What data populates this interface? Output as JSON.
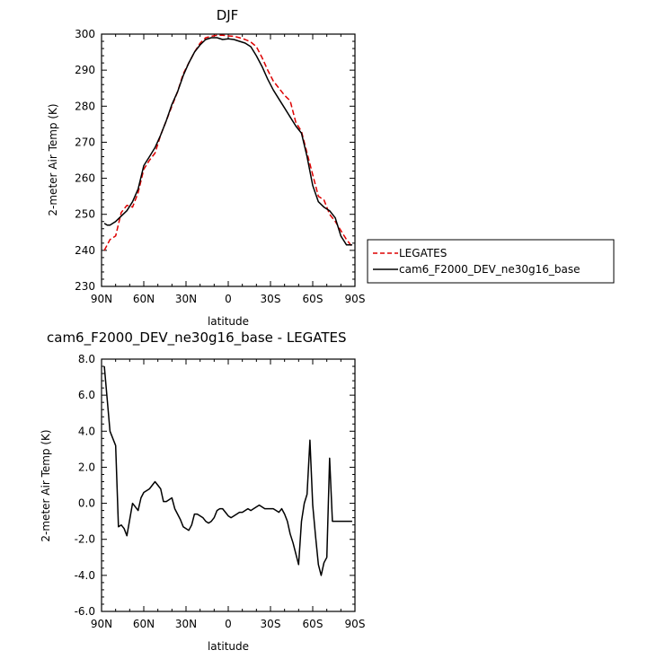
{
  "chart_data": [
    {
      "type": "line",
      "title": "DJF",
      "xlabel": "latitude",
      "ylabel": "2-meter Air Temp (K)",
      "xlim": [
        90,
        -90
      ],
      "ylim": [
        230,
        300
      ],
      "x_ticks": [
        90,
        60,
        30,
        0,
        -30,
        -60,
        -90
      ],
      "x_tick_labels": [
        "90N",
        "60N",
        "30N",
        "0",
        "30S",
        "60S",
        "90S"
      ],
      "y_ticks": [
        230,
        240,
        250,
        260,
        270,
        280,
        290,
        300
      ],
      "y_tick_labels": [
        "230",
        "240",
        "250",
        "260",
        "270",
        "280",
        "290",
        "300"
      ],
      "legend_position": "right",
      "series": [
        {
          "name": "LEGATES",
          "color": "#dd0000",
          "dash": "dashed",
          "x": [
            88,
            84,
            80,
            76,
            72,
            68,
            64,
            60,
            56,
            52,
            48,
            44,
            40,
            36,
            32,
            28,
            24,
            20,
            16,
            12,
            8,
            4,
            0,
            -4,
            -8,
            -12,
            -16,
            -20,
            -24,
            -28,
            -32,
            -36,
            -40,
            -44,
            -48,
            -52,
            -56,
            -60,
            -64,
            -68,
            -72,
            -76,
            -80,
            -84,
            -88
          ],
          "y": [
            240.0,
            243.0,
            244.0,
            250.5,
            252.5,
            252.0,
            256.0,
            262.5,
            265.0,
            267.0,
            272.0,
            276.0,
            280.0,
            284.0,
            289.0,
            292.0,
            295.0,
            297.5,
            299.0,
            299.4,
            299.7,
            299.7,
            299.5,
            299.4,
            299.0,
            298.5,
            297.8,
            296.5,
            293.5,
            290.0,
            287.0,
            285.0,
            283.0,
            281.5,
            275.5,
            273.0,
            267.0,
            261.0,
            255.0,
            254.0,
            250.0,
            248.0,
            245.5,
            243.0,
            241.0
          ]
        },
        {
          "name": "cam6_F2000_DEV_ne30g16_base",
          "color": "#000000",
          "dash": "solid",
          "x": [
            88,
            86,
            84,
            82,
            80,
            76,
            72,
            68,
            64,
            60,
            56,
            52,
            48,
            44,
            40,
            36,
            32,
            28,
            24,
            20,
            16,
            12,
            8,
            4,
            0,
            -4,
            -8,
            -12,
            -16,
            -20,
            -24,
            -28,
            -32,
            -36,
            -40,
            -44,
            -48,
            -52,
            -56,
            -60,
            -64,
            -68,
            -72,
            -76,
            -80,
            -84,
            -88
          ],
          "y": [
            247.5,
            247.0,
            247.0,
            247.5,
            248.0,
            249.5,
            251.0,
            253.5,
            257.0,
            263.5,
            266.0,
            268.5,
            272.0,
            276.0,
            280.5,
            284.0,
            288.5,
            292.0,
            295.0,
            297.0,
            298.5,
            299.0,
            299.0,
            298.5,
            298.7,
            298.5,
            298.0,
            297.5,
            296.5,
            294.0,
            291.0,
            287.5,
            284.5,
            282.0,
            279.5,
            277.0,
            274.5,
            272.5,
            266.0,
            258.0,
            253.5,
            252.0,
            251.0,
            249.0,
            244.0,
            241.5,
            241.5
          ]
        }
      ]
    },
    {
      "type": "line",
      "title": "cam6_F2000_DEV_ne30g16_base - LEGATES",
      "xlabel": "latitude",
      "ylabel": "2-meter Air Temp (K)",
      "xlim": [
        90,
        -90
      ],
      "ylim": [
        -6,
        8
      ],
      "x_ticks": [
        90,
        60,
        30,
        0,
        -30,
        -60,
        -90
      ],
      "x_tick_labels": [
        "90N",
        "60N",
        "30N",
        "0",
        "30S",
        "60S",
        "90S"
      ],
      "y_ticks": [
        -6,
        -4,
        -2,
        0,
        2,
        4,
        6,
        8
      ],
      "y_tick_labels": [
        "-6.0",
        "-4.0",
        "-2.0",
        "0.0",
        "2.0",
        "4.0",
        "6.0",
        "8.0"
      ],
      "series": [
        {
          "color": "#000000",
          "dash": "solid",
          "x": [
            88,
            84,
            80,
            78,
            76,
            74,
            72,
            68,
            64,
            62,
            60,
            56,
            54,
            52,
            50,
            48,
            46,
            44,
            40,
            38,
            36,
            34,
            32,
            30,
            28,
            26,
            24,
            22,
            20,
            18,
            16,
            14,
            12,
            10,
            8,
            6,
            4,
            2,
            0,
            -2,
            -4,
            -6,
            -8,
            -10,
            -12,
            -14,
            -16,
            -18,
            -20,
            -22,
            -24,
            -26,
            -28,
            -30,
            -32,
            -34,
            -36,
            -38,
            -40,
            -42,
            -44,
            -46,
            -48,
            -50,
            -52,
            -54,
            -56,
            -58,
            -60,
            -62,
            -64,
            -66,
            -68,
            -70,
            -72,
            -74,
            -76,
            -78,
            -80,
            -82,
            -84,
            -86,
            -88
          ],
          "y": [
            7.6,
            4.0,
            3.2,
            -1.3,
            -1.2,
            -1.4,
            -1.8,
            0.0,
            -0.4,
            0.3,
            0.6,
            0.8,
            1.0,
            1.2,
            1.0,
            0.8,
            0.1,
            0.1,
            0.3,
            -0.3,
            -0.6,
            -0.9,
            -1.3,
            -1.4,
            -1.5,
            -1.2,
            -0.6,
            -0.6,
            -0.7,
            -0.8,
            -1.0,
            -1.1,
            -1.0,
            -0.8,
            -0.4,
            -0.3,
            -0.3,
            -0.5,
            -0.7,
            -0.8,
            -0.7,
            -0.6,
            -0.5,
            -0.5,
            -0.4,
            -0.3,
            -0.4,
            -0.3,
            -0.2,
            -0.1,
            -0.2,
            -0.3,
            -0.3,
            -0.3,
            -0.3,
            -0.4,
            -0.5,
            -0.3,
            -0.6,
            -1.0,
            -1.7,
            -2.2,
            -2.8,
            -3.4,
            -1.0,
            0.0,
            0.5,
            3.5,
            -0.1,
            -1.8,
            -3.4,
            -4.0,
            -3.3,
            -3.0,
            2.5,
            -1.0,
            -1.0,
            -1.0,
            -1.0,
            -1.0,
            -1.0,
            -1.0,
            -1.0
          ]
        }
      ]
    }
  ]
}
